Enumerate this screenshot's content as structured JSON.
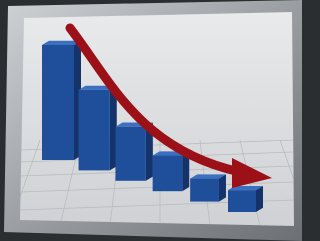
{
  "chart_data": {
    "type": "bar",
    "categories": [
      null,
      null,
      null,
      null,
      null,
      null
    ],
    "values": [
      100,
      70,
      47,
      31,
      20,
      19
    ],
    "color": "#1f4f9a",
    "ylim": [
      0,
      100
    ]
  }
}
